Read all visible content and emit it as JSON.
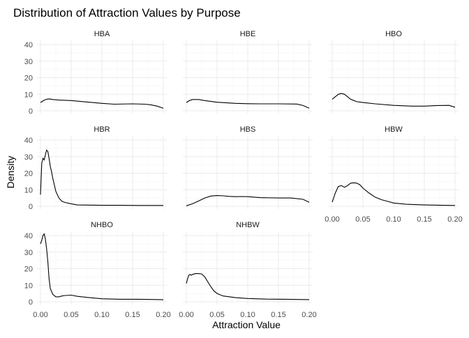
{
  "chart_data": {
    "type": "line",
    "title": "Distribution of Attraction Values by Purpose",
    "xlabel": "Attraction Value",
    "ylabel": "Density",
    "grid": true,
    "xlim": [
      0,
      0.2
    ],
    "ylim": [
      0,
      40
    ],
    "x_ticks": [
      "0.00",
      "0.05",
      "0.10",
      "0.15",
      "0.20"
    ],
    "y_ticks": [
      "0",
      "10",
      "20",
      "30",
      "40"
    ],
    "line_color": "#000000",
    "grid_color": "#ebebeb",
    "panels": [
      {
        "name": "HBA",
        "x": [
          0.0,
          0.005,
          0.01,
          0.015,
          0.02,
          0.03,
          0.05,
          0.08,
          0.1,
          0.12,
          0.15,
          0.17,
          0.18,
          0.19,
          0.2
        ],
        "values": [
          5,
          6.2,
          7,
          7.2,
          6.8,
          6.5,
          6.2,
          5.2,
          4.5,
          4.0,
          4.2,
          4.0,
          3.6,
          2.8,
          1.5
        ]
      },
      {
        "name": "HBE",
        "x": [
          0.0,
          0.005,
          0.01,
          0.02,
          0.03,
          0.05,
          0.08,
          0.1,
          0.12,
          0.15,
          0.18,
          0.19,
          0.2
        ],
        "values": [
          5,
          6.2,
          6.8,
          6.8,
          6.2,
          5.2,
          4.5,
          4.3,
          4.2,
          4.2,
          4.1,
          3.2,
          1.6
        ]
      },
      {
        "name": "HBO",
        "x": [
          0.0,
          0.005,
          0.01,
          0.015,
          0.02,
          0.025,
          0.03,
          0.04,
          0.05,
          0.07,
          0.1,
          0.13,
          0.15,
          0.17,
          0.19,
          0.2
        ],
        "values": [
          7,
          8.5,
          10,
          10.5,
          10,
          8.5,
          7,
          5.5,
          5,
          4.2,
          3.3,
          2.8,
          2.8,
          3.2,
          3.3,
          2.2
        ]
      },
      {
        "name": "HBR",
        "x": [
          0.0,
          0.002,
          0.004,
          0.006,
          0.008,
          0.01,
          0.012,
          0.014,
          0.016,
          0.018,
          0.02,
          0.025,
          0.03,
          0.035,
          0.04,
          0.05,
          0.06,
          0.08,
          0.1,
          0.13,
          0.16,
          0.18,
          0.2
        ],
        "values": [
          7,
          26,
          29,
          28,
          31,
          34,
          33,
          29,
          24,
          21,
          17,
          9,
          5,
          3,
          2.3,
          1.5,
          0.8,
          0.7,
          0.6,
          0.6,
          0.5,
          0.5,
          0.5
        ]
      },
      {
        "name": "HBS",
        "x": [
          0.0,
          0.01,
          0.02,
          0.03,
          0.04,
          0.05,
          0.06,
          0.07,
          0.08,
          0.09,
          0.1,
          0.12,
          0.15,
          0.17,
          0.19,
          0.2
        ],
        "values": [
          0.3,
          1.5,
          3.2,
          5,
          6.2,
          6.5,
          6.3,
          6.0,
          5.8,
          5.9,
          5.8,
          5.2,
          5.0,
          5.0,
          4.2,
          2.4
        ]
      },
      {
        "name": "HBW",
        "x": [
          0.0,
          0.005,
          0.01,
          0.015,
          0.02,
          0.025,
          0.03,
          0.035,
          0.04,
          0.045,
          0.05,
          0.06,
          0.07,
          0.08,
          0.09,
          0.1,
          0.12,
          0.15,
          0.18,
          0.2
        ],
        "values": [
          2.5,
          8,
          12,
          12.5,
          11.5,
          12.5,
          14,
          14.2,
          14,
          13,
          11,
          8,
          5.5,
          4,
          3,
          2,
          1.2,
          0.8,
          0.6,
          0.5
        ]
      },
      {
        "name": "NHBO",
        "x": [
          0.0,
          0.002,
          0.004,
          0.006,
          0.008,
          0.01,
          0.012,
          0.014,
          0.016,
          0.02,
          0.025,
          0.03,
          0.035,
          0.04,
          0.05,
          0.06,
          0.08,
          0.1,
          0.13,
          0.16,
          0.18,
          0.2
        ],
        "values": [
          35,
          37,
          40,
          41,
          38,
          32,
          24,
          14,
          8,
          4.5,
          3,
          3,
          3.5,
          3.8,
          4,
          3.3,
          2.5,
          1.8,
          1.5,
          1.5,
          1.4,
          1.2
        ]
      },
      {
        "name": "NHBW",
        "x": [
          0.0,
          0.002,
          0.004,
          0.006,
          0.008,
          0.01,
          0.015,
          0.02,
          0.025,
          0.03,
          0.035,
          0.04,
          0.045,
          0.05,
          0.06,
          0.08,
          0.1,
          0.13,
          0.16,
          0.2
        ],
        "values": [
          11,
          14,
          16,
          16.5,
          16,
          16.5,
          17,
          17,
          16.8,
          15,
          12,
          9,
          6.5,
          5,
          3.5,
          2.5,
          2.0,
          1.6,
          1.5,
          1.3
        ]
      }
    ]
  }
}
